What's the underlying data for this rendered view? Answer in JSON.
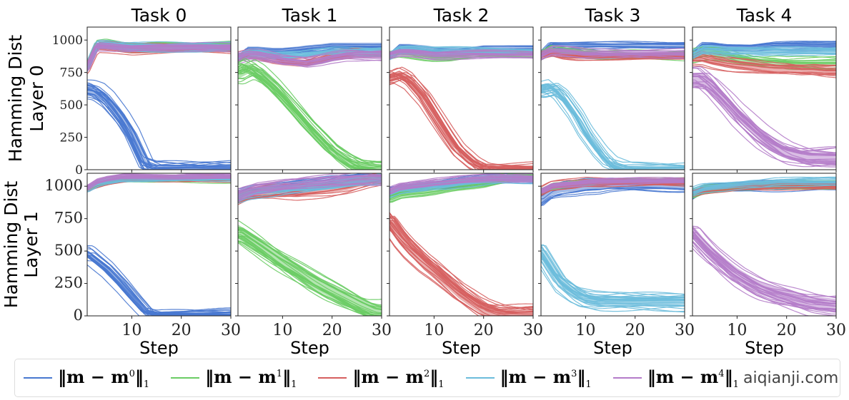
{
  "chart_data": {
    "type": "line",
    "layout": "2 rows x 5 columns, shared axes",
    "titles": [
      "Task 0",
      "Task 1",
      "Task 2",
      "Task 3",
      "Task 4"
    ],
    "row_labels": [
      [
        "Hamming Dist",
        "Layer 0"
      ],
      [
        "Hamming Dist",
        "Layer 1"
      ]
    ],
    "xlabel": "Step",
    "xlim": [
      1,
      30
    ],
    "xticks": [
      10,
      20,
      30
    ],
    "ylim": [
      0,
      1100
    ],
    "yticks": [
      0,
      250,
      500,
      750,
      1000
    ],
    "grid": false,
    "legend_placement": "bottom",
    "series_names": [
      "‖m − m⁰‖₁",
      "‖m − m¹‖₁",
      "‖m − m²‖₁",
      "‖m − m³‖₁",
      "‖m − m⁴‖₁"
    ],
    "series_colors": [
      "#4878d0",
      "#6acc64",
      "#d65f5f",
      "#6bbcdb",
      "#b47cc9"
    ],
    "steps": [
      1,
      3,
      5,
      8,
      10,
      13,
      15,
      18,
      20,
      23,
      25,
      28,
      30
    ],
    "panels": [
      [
        {
          "means": [
            [
              620,
              600,
              540,
              400,
              280,
              30,
              0,
              0,
              0,
              0,
              0,
              0,
              0
            ],
            [
              780,
              960,
              970,
              950,
              940,
              950,
              960,
              960,
              960,
              960,
              960,
              960,
              960
            ],
            [
              780,
              950,
              950,
              940,
              930,
              930,
              930,
              930,
              930,
              930,
              930,
              930,
              930
            ],
            [
              780,
              960,
              960,
              950,
              950,
              950,
              950,
              950,
              950,
              950,
              950,
              950,
              950
            ],
            [
              780,
              955,
              955,
              945,
              940,
              945,
              945,
              945,
              945,
              945,
              945,
              945,
              945
            ]
          ],
          "spread": [
            70,
            40,
            50,
            40,
            40
          ]
        },
        {
          "means": [
            [
              860,
              930,
              930,
              920,
              920,
              930,
              940,
              950,
              960,
              960,
              960,
              960,
              960
            ],
            [
              740,
              780,
              740,
              640,
              560,
              430,
              340,
              220,
              140,
              60,
              20,
              0,
              0
            ],
            [
              860,
              880,
              870,
              840,
              830,
              820,
              820,
              850,
              870,
              880,
              890,
              890,
              890
            ],
            [
              860,
              900,
              900,
              880,
              880,
              880,
              890,
              900,
              910,
              910,
              910,
              910,
              910
            ],
            [
              860,
              880,
              880,
              860,
              840,
              830,
              820,
              840,
              860,
              880,
              880,
              880,
              880
            ]
          ],
          "spread": [
            40,
            80,
            50,
            40,
            50
          ]
        },
        {
          "means": [
            [
              880,
              950,
              950,
              940,
              930,
              920,
              920,
              930,
              940,
              940,
              940,
              940,
              940
            ],
            [
              880,
              900,
              890,
              870,
              860,
              860,
              870,
              880,
              890,
              890,
              890,
              890,
              890
            ],
            [
              700,
              730,
              690,
              560,
              440,
              260,
              150,
              50,
              10,
              0,
              0,
              0,
              0
            ],
            [
              880,
              930,
              930,
              920,
              910,
              910,
              910,
              910,
              910,
              910,
              910,
              910,
              910
            ],
            [
              880,
              900,
              900,
              890,
              880,
              880,
              880,
              880,
              880,
              880,
              880,
              880,
              880
            ]
          ],
          "spread": [
            40,
            40,
            60,
            40,
            40
          ]
        },
        {
          "means": [
            [
              880,
              960,
              960,
              960,
              960,
              960,
              960,
              960,
              960,
              960,
              960,
              960,
              960
            ],
            [
              880,
              920,
              910,
              900,
              890,
              880,
              880,
              880,
              880,
              880,
              880,
              880,
              880
            ],
            [
              880,
              900,
              880,
              870,
              870,
              870,
              870,
              870,
              870,
              870,
              870,
              870,
              870
            ],
            [
              620,
              640,
              580,
              420,
              280,
              120,
              40,
              0,
              0,
              0,
              0,
              0,
              0
            ],
            [
              880,
              920,
              920,
              910,
              900,
              900,
              900,
              900,
              900,
              900,
              900,
              900,
              900
            ]
          ],
          "spread": [
            30,
            40,
            30,
            60,
            40
          ]
        },
        {
          "means": [
            [
              880,
              950,
              950,
              940,
              940,
              940,
              950,
              960,
              960,
              960,
              960,
              960,
              960
            ],
            [
              880,
              900,
              900,
              880,
              860,
              840,
              830,
              830,
              820,
              820,
              820,
              820,
              820
            ],
            [
              860,
              860,
              840,
              820,
              810,
              800,
              790,
              780,
              780,
              770,
              770,
              760,
              760
            ],
            [
              880,
              920,
              920,
              910,
              910,
              910,
              910,
              910,
              910,
              910,
              910,
              910,
              910
            ],
            [
              700,
              700,
              640,
              520,
              430,
              320,
              250,
              170,
              130,
              100,
              90,
              90,
              90
            ]
          ],
          "spread": [
            40,
            50,
            60,
            40,
            90
          ]
        }
      ],
      [
        {
          "means": [
            [
              480,
              420,
              360,
              240,
              150,
              20,
              0,
              0,
              0,
              0,
              0,
              0,
              0
            ],
            [
              980,
              1010,
              1030,
              1050,
              1055,
              1055,
              1055,
              1055,
              1055,
              1055,
              1055,
              1055,
              1055
            ],
            [
              980,
              1010,
              1030,
              1050,
              1060,
              1060,
              1060,
              1060,
              1060,
              1060,
              1060,
              1060,
              1060
            ],
            [
              980,
              1020,
              1040,
              1060,
              1060,
              1060,
              1060,
              1060,
              1060,
              1060,
              1060,
              1060,
              1060
            ],
            [
              980,
              1030,
              1050,
              1070,
              1070,
              1070,
              1070,
              1070,
              1070,
              1070,
              1070,
              1070,
              1070
            ]
          ],
          "spread": [
            60,
            30,
            30,
            30,
            30
          ]
        },
        {
          "means": [
            [
              930,
              960,
              970,
              980,
              990,
              1000,
              1010,
              1020,
              1030,
              1040,
              1050,
              1060,
              1060
            ],
            [
              650,
              600,
              550,
              470,
              420,
              350,
              300,
              230,
              190,
              130,
              90,
              40,
              30
            ],
            [
              900,
              930,
              940,
              950,
              950,
              950,
              960,
              970,
              980,
              1000,
              1020,
              1050,
              1060
            ],
            [
              920,
              950,
              960,
              970,
              980,
              990,
              990,
              1000,
              1010,
              1030,
              1040,
              1050,
              1060
            ],
            [
              930,
              960,
              980,
              990,
              1000,
              1010,
              1020,
              1030,
              1040,
              1050,
              1060,
              1060,
              1060
            ]
          ],
          "spread": [
            50,
            110,
            60,
            50,
            50
          ]
        },
        {
          "means": [
            [
              950,
              970,
              980,
              990,
              1000,
              1010,
              1020,
              1030,
              1040,
              1050,
              1060,
              1060,
              1060
            ],
            [
              900,
              930,
              940,
              950,
              960,
              980,
              990,
              1000,
              1010,
              1040,
              1060,
              1060,
              1060
            ],
            [
              720,
              610,
              520,
              410,
              350,
              250,
              180,
              100,
              50,
              10,
              0,
              0,
              0
            ],
            [
              950,
              980,
              990,
              1000,
              1010,
              1020,
              1030,
              1040,
              1050,
              1060,
              1060,
              1060,
              1060
            ],
            [
              960,
              990,
              1000,
              1010,
              1020,
              1030,
              1040,
              1050,
              1055,
              1060,
              1060,
              1060,
              1060
            ]
          ],
          "spread": [
            50,
            50,
            90,
            40,
            40
          ]
        },
        {
          "means": [
            [
              900,
              960,
              980,
              990,
              1000,
              1000,
              1010,
              1010,
              1010,
              1010,
              1010,
              1010,
              1010
            ],
            [
              950,
              990,
              1000,
              1010,
              1020,
              1020,
              1030,
              1030,
              1030,
              1030,
              1030,
              1030,
              1030
            ],
            [
              960,
              1000,
              1010,
              1020,
              1030,
              1030,
              1030,
              1030,
              1030,
              1030,
              1030,
              1030,
              1030
            ],
            [
              500,
              380,
              260,
              170,
              130,
              110,
              110,
              110,
              110,
              110,
              110,
              110,
              110
            ],
            [
              960,
              1000,
              1010,
              1020,
              1030,
              1040,
              1040,
              1040,
              1040,
              1040,
              1040,
              1040,
              1040
            ]
          ],
          "spread": [
            60,
            40,
            40,
            80,
            40
          ]
        },
        {
          "means": [
            [
              930,
              980,
              990,
              1000,
              1000,
              1010,
              1010,
              1010,
              1010,
              1010,
              1010,
              1010,
              1010
            ],
            [
              930,
              960,
              970,
              980,
              990,
              990,
              1000,
              1000,
              1000,
              1000,
              1000,
              1000,
              1000
            ],
            [
              950,
              970,
              980,
              990,
              1000,
              1000,
              1000,
              1000,
              1000,
              1000,
              1000,
              1000,
              1000
            ],
            [
              950,
              980,
              990,
              1000,
              1010,
              1020,
              1020,
              1030,
              1030,
              1030,
              1030,
              1030,
              1030
            ],
            [
              650,
              560,
              480,
              380,
              320,
              250,
              210,
              170,
              150,
              120,
              100,
              90,
              80
            ]
          ],
          "spread": [
            50,
            50,
            40,
            40,
            100
          ]
        }
      ]
    ]
  },
  "legend": {
    "items": [
      {
        "base": "‖m − m",
        "sup": "0",
        "tail": "‖",
        "sub": "1"
      },
      {
        "base": "‖m − m",
        "sup": "1",
        "tail": "‖",
        "sub": "1"
      },
      {
        "base": "‖m − m",
        "sup": "2",
        "tail": "‖",
        "sub": "1"
      },
      {
        "base": "‖m − m",
        "sup": "3",
        "tail": "‖",
        "sub": "1"
      },
      {
        "base": "‖m − m",
        "sup": "4",
        "tail": "‖",
        "sub": "1"
      }
    ]
  },
  "watermark": "aiqianji.com"
}
